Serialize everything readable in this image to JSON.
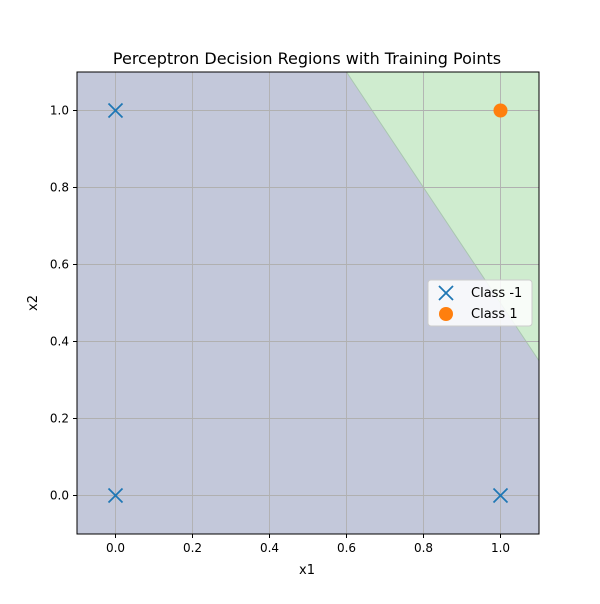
{
  "chart_data": {
    "type": "scatter",
    "title": "Perceptron Decision Regions with Training Points",
    "xlabel": "x1",
    "ylabel": "x2",
    "xlim": [
      -0.1,
      1.1
    ],
    "ylim": [
      -0.1,
      1.1
    ],
    "xticks": [
      0.0,
      0.2,
      0.4,
      0.6,
      0.8,
      1.0
    ],
    "yticks": [
      0.0,
      0.2,
      0.4,
      0.6,
      0.8,
      1.0
    ],
    "xtick_labels": [
      "0.0",
      "0.2",
      "0.4",
      "0.6",
      "0.8",
      "1.0"
    ],
    "ytick_labels": [
      "0.0",
      "0.2",
      "0.4",
      "0.6",
      "0.8",
      "1.0"
    ],
    "grid": true,
    "legend_position": "center-right",
    "decision_boundary": {
      "points": [
        [
          0.6,
          1.1
        ],
        [
          1.1,
          0.35
        ]
      ],
      "regions": [
        {
          "class": "-1",
          "color": "#c3c8da"
        },
        {
          "class": "1",
          "color": "#cfeccf"
        }
      ]
    },
    "series": [
      {
        "name": "Class -1",
        "marker": "x",
        "color": "#1f77b4",
        "points": [
          [
            0,
            0
          ],
          [
            0,
            1
          ],
          [
            1,
            0
          ]
        ]
      },
      {
        "name": "Class 1",
        "marker": "o",
        "color": "#ff7f0e",
        "points": [
          [
            1,
            1
          ]
        ]
      }
    ]
  }
}
